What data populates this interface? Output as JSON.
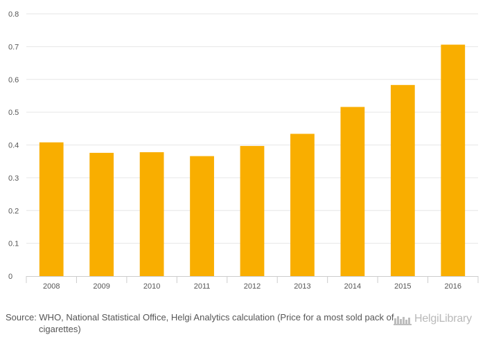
{
  "chart_data": {
    "type": "bar",
    "categories": [
      "2008",
      "2009",
      "2010",
      "2011",
      "2012",
      "2013",
      "2014",
      "2015",
      "2016"
    ],
    "values": [
      0.408,
      0.376,
      0.378,
      0.366,
      0.397,
      0.434,
      0.516,
      0.583,
      0.706
    ],
    "ylim": [
      0,
      0.8
    ],
    "yticks": [
      "0",
      "0.1",
      "0.2",
      "0.3",
      "0.4",
      "0.5",
      "0.6",
      "0.7",
      "0.8"
    ],
    "grid": true,
    "bar_color": "#F9AE00",
    "grid_color": "#e6e6e6"
  },
  "source_text": "Source: WHO, National Statistical Office, Helgi Analytics calculation (Price for a most sold pack of cigarettes)",
  "brand": {
    "name": "HelgiLibrary",
    "icon": "helgi-library-logo-icon"
  }
}
